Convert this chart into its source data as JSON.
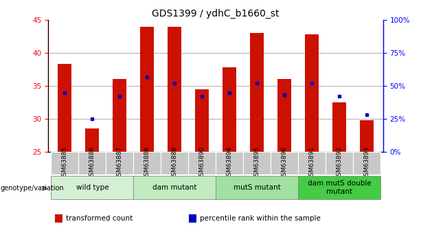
{
  "title": "GDS1399 / ydhC_b1660_st",
  "samples": [
    "GSM63885",
    "GSM63886",
    "GSM63887",
    "GSM63888",
    "GSM63889",
    "GSM63890",
    "GSM63894",
    "GSM63895",
    "GSM63896",
    "GSM63891",
    "GSM63892",
    "GSM63893"
  ],
  "transformed_counts": [
    38.3,
    28.5,
    36.0,
    44.0,
    44.0,
    34.5,
    37.8,
    43.0,
    36.0,
    42.8,
    32.5,
    29.8
  ],
  "percentile_ranks_pct": [
    45,
    25,
    42,
    57,
    52,
    42,
    45,
    52,
    43,
    52,
    42,
    28
  ],
  "ymin": 25,
  "ymax": 45,
  "yticks_left": [
    25,
    30,
    35,
    40,
    45
  ],
  "yticks_right": [
    0,
    25,
    50,
    75,
    100
  ],
  "ytick_right_labels": [
    "0%",
    "25%",
    "50%",
    "75%",
    "100%"
  ],
  "groups": [
    {
      "label": "wild type",
      "cols": [
        0,
        1,
        2
      ],
      "color": "#d4f0d4"
    },
    {
      "label": "dam mutant",
      "cols": [
        3,
        4,
        5
      ],
      "color": "#c0ecc0"
    },
    {
      "label": "mutS mutant",
      "cols": [
        6,
        7,
        8
      ],
      "color": "#a0e0a0"
    },
    {
      "label": "dam mutS double\nmutant",
      "cols": [
        9,
        10,
        11
      ],
      "color": "#44cc44"
    }
  ],
  "bar_color": "#cc1100",
  "dot_color": "#0000bb",
  "bar_width": 0.5,
  "tick_label_bg": "#c8c8c8",
  "genotype_label": "genotype/variation",
  "legend_items": [
    {
      "label": "transformed count",
      "color": "#cc1100"
    },
    {
      "label": "percentile rank within the sample",
      "color": "#0000bb"
    }
  ],
  "title_fontsize": 10,
  "tick_fontsize": 7.5,
  "group_fontsize": 7.5,
  "sample_fontsize": 6.5
}
